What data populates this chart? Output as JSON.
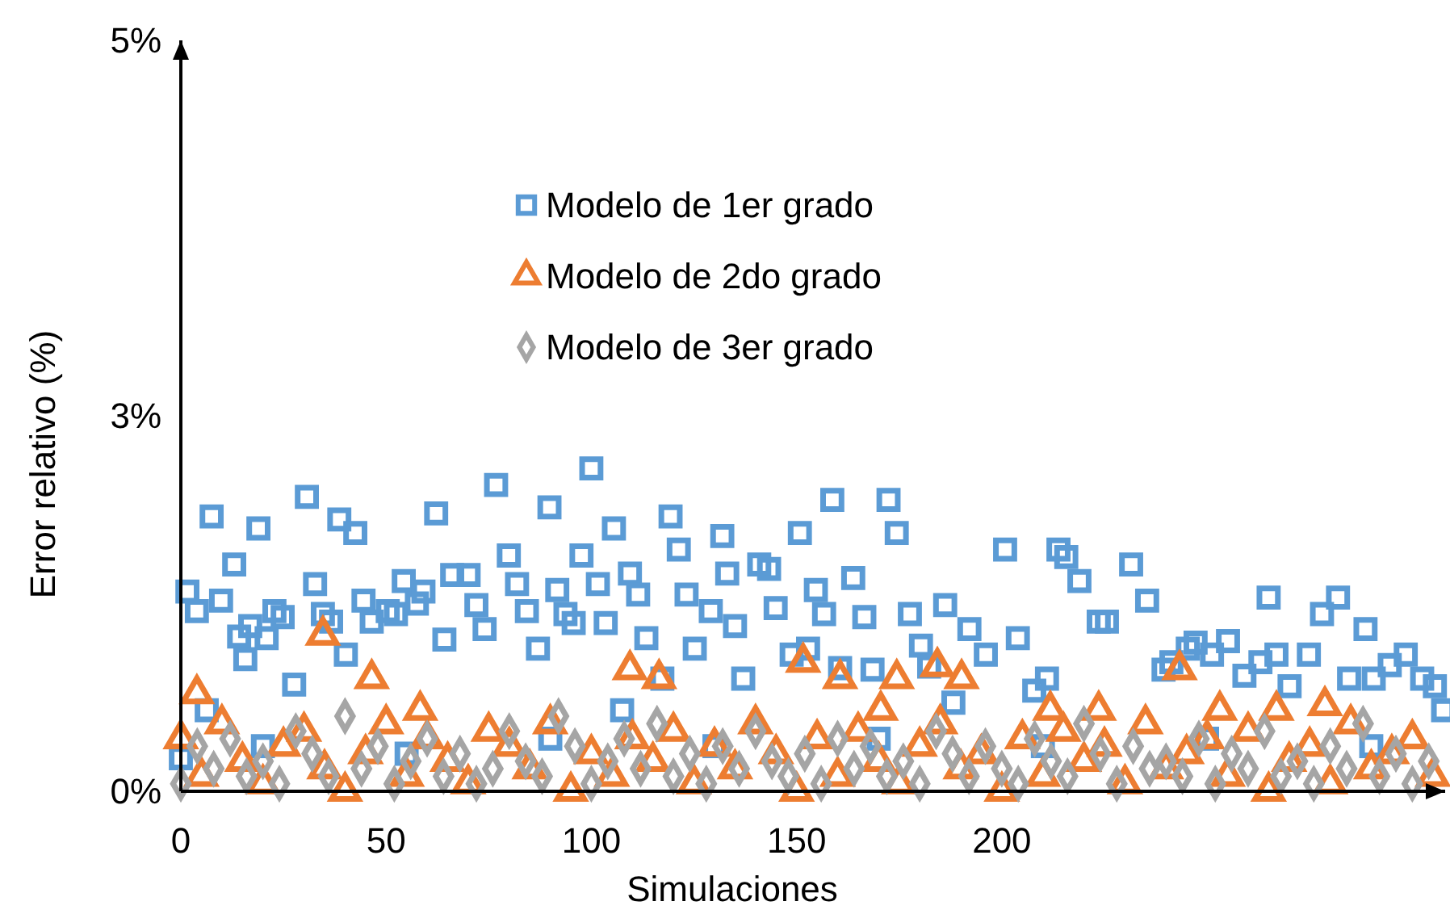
{
  "chart_data": {
    "type": "scatter",
    "xlabel": "Simulaciones",
    "ylabel": "Error relativo (%)",
    "xlim": [
      0,
      308
    ],
    "xticks": [
      0,
      50,
      100,
      150,
      200
    ],
    "ylim": [
      0,
      5
    ],
    "yticks": [
      {
        "value": 0,
        "label": "0%"
      },
      {
        "value": 2.5,
        "label": "3%"
      },
      {
        "value": 5,
        "label": "5%"
      }
    ],
    "legend": "top",
    "series": [
      {
        "name": "Modelo de 1er grado",
        "color": "#5b9bd5",
        "marker": "square",
        "x": [
          1.6,
          3.9,
          6.3,
          7.5,
          9.8,
          13,
          14.2,
          15.7,
          16.9,
          18.9,
          20.9,
          22.8,
          24.8,
          27.6,
          30.7,
          32.7,
          34.6,
          36.6,
          38.6,
          40.2,
          42.5,
          44.5,
          46.5,
          50.4,
          52.4,
          54.3,
          57.5,
          59.1,
          62.2,
          64.2,
          66.1,
          70.1,
          72,
          74,
          76.8,
          79.9,
          81.9,
          84.3,
          87,
          89.8,
          91.7,
          93.7,
          95.7,
          97.6,
          100,
          101.6,
          103.5,
          105.5,
          107.5,
          109.4,
          111.4,
          113.4,
          117.3,
          119.3,
          121.3,
          123.2,
          125.2,
          129.1,
          131.9,
          133.1,
          135,
          137,
          140.9,
          143.3,
          144.9,
          148.8,
          150.8,
          152.8,
          154.7,
          156.7,
          158.7,
          160.6,
          163.8,
          166.5,
          168.5,
          172.4,
          174.4,
          177.6,
          180.3,
          182.3,
          186.2,
          188.2,
          192.1,
          196.1,
          200.8,
          203.9,
          207.9,
          211,
          213.8,
          215.7,
          218.9,
          223.6,
          225.6,
          231.5,
          235.4,
          239.4,
          241.3,
          245.3,
          247.2,
          251.2,
          255.1,
          259.1,
          263,
          265,
          266.9,
          270.1,
          274.8,
          278,
          281.9,
          284.6,
          288.6,
          290.6,
          294.5,
          298.4,
          302.4,
          305.5,
          307.5,
          0,
          20,
          55,
          90,
          130,
          170,
          210,
          250,
          290
        ],
        "values": [
          1.33,
          1.2,
          0.54,
          1.83,
          1.27,
          1.51,
          1.03,
          0.88,
          1.1,
          1.75,
          1.02,
          1.2,
          1.16,
          0.71,
          1.96,
          1.38,
          1.18,
          1.13,
          1.81,
          0.91,
          1.72,
          1.27,
          1.13,
          1.2,
          1.18,
          1.4,
          1.25,
          1.33,
          1.85,
          1.01,
          1.44,
          1.44,
          1.24,
          1.08,
          2.04,
          1.57,
          1.38,
          1.2,
          0.95,
          1.89,
          1.34,
          1.18,
          1.12,
          1.57,
          2.15,
          1.38,
          1.12,
          1.75,
          0.54,
          1.45,
          1.31,
          1.02,
          0.75,
          1.83,
          1.61,
          1.31,
          0.95,
          1.2,
          1.7,
          1.45,
          1.1,
          0.75,
          1.51,
          1.48,
          1.22,
          0.91,
          1.72,
          0.95,
          1.34,
          1.18,
          1.94,
          0.82,
          1.42,
          1.16,
          0.81,
          1.94,
          1.72,
          1.18,
          0.97,
          0.83,
          1.24,
          0.59,
          1.08,
          0.91,
          1.61,
          1.02,
          0.67,
          0.75,
          1.61,
          1.56,
          1.4,
          1.13,
          1.13,
          1.51,
          1.27,
          0.81,
          0.86,
          0.95,
          0.99,
          0.91,
          1,
          0.77,
          0.86,
          1.29,
          0.91,
          0.7,
          0.91,
          1.18,
          1.29,
          0.75,
          1.08,
          0.75,
          0.84,
          0.91,
          0.75,
          0.7,
          0.54,
          0.22,
          0.3,
          0.25,
          0.35,
          0.3,
          0.35,
          0.3,
          0.35,
          0.3
        ]
      },
      {
        "name": "Modelo de 2do grado",
        "color": "#ed7d31",
        "marker": "triangle",
        "x": [
          3.9,
          34.6,
          46.5,
          58.3,
          109.4,
          116.5,
          151.6,
          160.6,
          170.5,
          174.4,
          184.3,
          190.2,
          211.8,
          223.6,
          243.3,
          253.1,
          266.9,
          278.7,
          0,
          5,
          10,
          15,
          20,
          25,
          30,
          35,
          40,
          45,
          50,
          55,
          60,
          65,
          70,
          75,
          80,
          85,
          90,
          95,
          100,
          105,
          110,
          115,
          120,
          125,
          130,
          135,
          140,
          145,
          150,
          155,
          160,
          165,
          170,
          175,
          180,
          185,
          190,
          195,
          200,
          205,
          210,
          215,
          220,
          225,
          230,
          235,
          240,
          245,
          250,
          255,
          260,
          265,
          270,
          275,
          280,
          285,
          290,
          295,
          300,
          305
        ],
        "values": [
          0.65,
          1.04,
          0.75,
          0.54,
          0.81,
          0.75,
          0.86,
          0.75,
          0.54,
          0.75,
          0.83,
          0.75,
          0.54,
          0.54,
          0.81,
          0.54,
          0.54,
          0.57,
          0.35,
          0.1,
          0.45,
          0.2,
          0.05,
          0.3,
          0.4,
          0.15,
          0,
          0.25,
          0.45,
          0.1,
          0.35,
          0.2,
          0.05,
          0.4,
          0.3,
          0.15,
          0.45,
          0,
          0.25,
          0.1,
          0.35,
          0.2,
          0.4,
          0.05,
          0.3,
          0.15,
          0.45,
          0.25,
          0,
          0.35,
          0.1,
          0.4,
          0.2,
          0.05,
          0.3,
          0.45,
          0.15,
          0.25,
          0,
          0.35,
          0.1,
          0.4,
          0.2,
          0.3,
          0.05,
          0.45,
          0.15,
          0.25,
          0.35,
          0.1,
          0.4,
          0,
          0.2,
          0.3,
          0.05,
          0.45,
          0.15,
          0.25,
          0.35,
          0.1
        ]
      },
      {
        "name": "Modelo de 3er grado",
        "color": "#a5a5a5",
        "marker": "diamond",
        "x": [
          0,
          4,
          8,
          12,
          16,
          20,
          24,
          28,
          32,
          36,
          40,
          44,
          48,
          52,
          56,
          60,
          64,
          68,
          72,
          76,
          80,
          84,
          88,
          92,
          96,
          100,
          104,
          108,
          112,
          116,
          120,
          124,
          128,
          132,
          136,
          140,
          144,
          148,
          152,
          156,
          160,
          164,
          168,
          172,
          176,
          180,
          184,
          188,
          192,
          196,
          200,
          204,
          208,
          212,
          216,
          220,
          224,
          228,
          232,
          236,
          240,
          244,
          248,
          252,
          256,
          260,
          264,
          268,
          272,
          276,
          280,
          284,
          288,
          292,
          296,
          300,
          304
        ],
        "values": [
          0.05,
          0.3,
          0.15,
          0.35,
          0.1,
          0.2,
          0.05,
          0.4,
          0.25,
          0.1,
          0.5,
          0.15,
          0.3,
          0.05,
          0.2,
          0.35,
          0.1,
          0.25,
          0.05,
          0.15,
          0.4,
          0.2,
          0.1,
          0.5,
          0.3,
          0.05,
          0.2,
          0.35,
          0.15,
          0.45,
          0.1,
          0.25,
          0.05,
          0.3,
          0.15,
          0.4,
          0.2,
          0.1,
          0.25,
          0.05,
          0.35,
          0.15,
          0.3,
          0.1,
          0.2,
          0.05,
          0.4,
          0.25,
          0.1,
          0.3,
          0.15,
          0.05,
          0.35,
          0.2,
          0.1,
          0.45,
          0.25,
          0.05,
          0.3,
          0.15,
          0.2,
          0.1,
          0.35,
          0.05,
          0.25,
          0.15,
          0.4,
          0.1,
          0.2,
          0.05,
          0.3,
          0.15,
          0.45,
          0.1,
          0.25,
          0.05,
          0.2
        ]
      }
    ]
  }
}
